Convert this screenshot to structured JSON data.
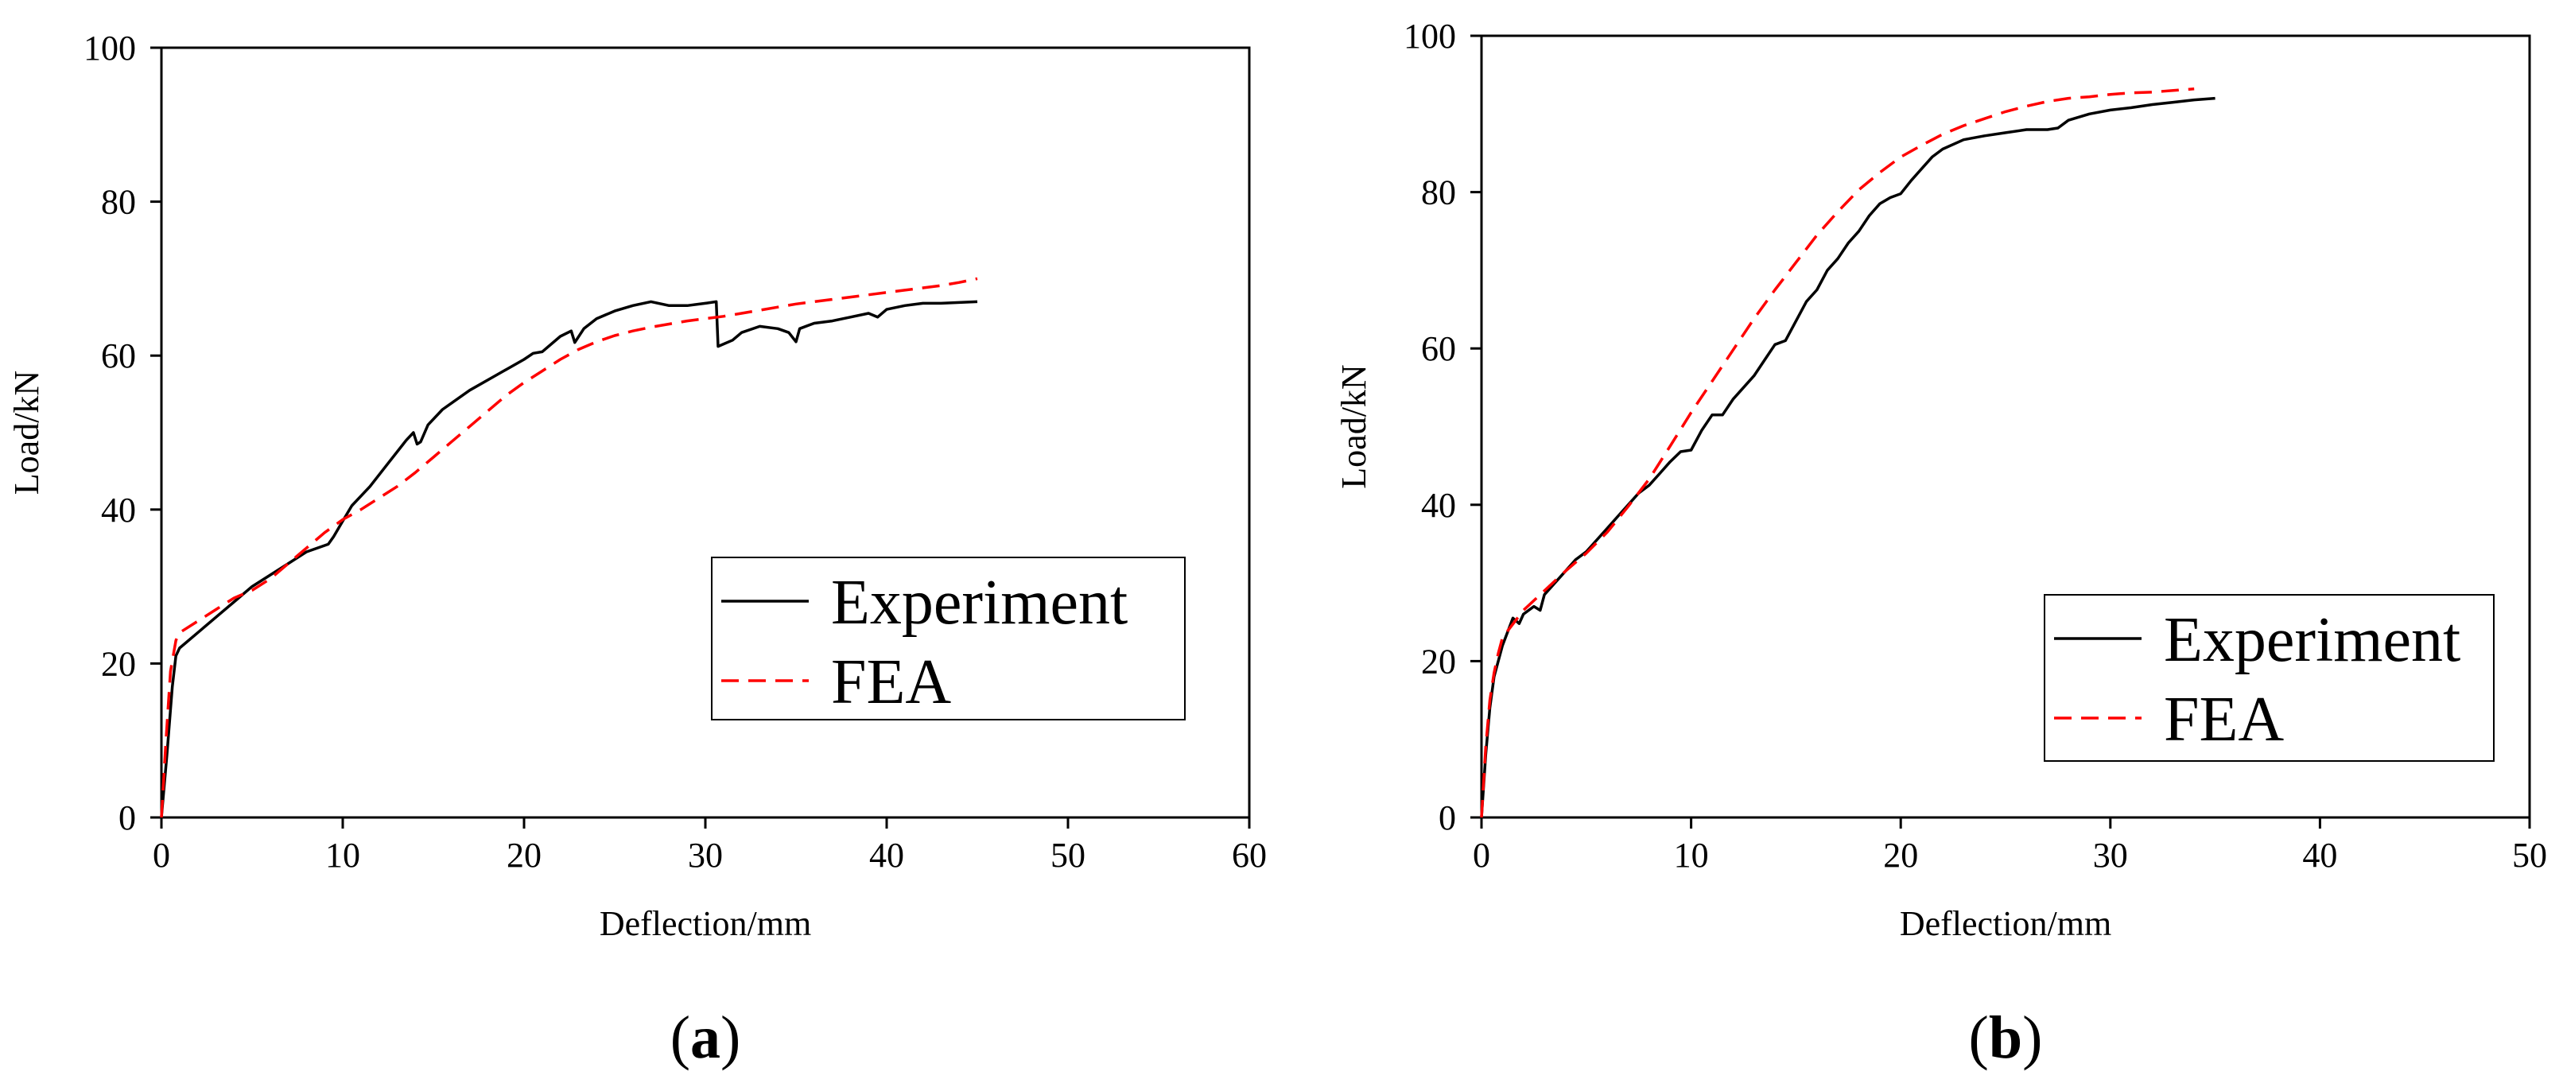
{
  "chart_data": [
    {
      "type": "line",
      "panel_label": "(a)",
      "panel_letter": "a",
      "xlabel": "Deflection/mm",
      "ylabel": "Load/kN",
      "xlim": [
        0,
        60
      ],
      "ylim": [
        0,
        100
      ],
      "xticks": [
        0,
        10,
        20,
        30,
        40,
        50,
        60
      ],
      "yticks": [
        0,
        20,
        40,
        60,
        80,
        100
      ],
      "legend_position": "bottom-right",
      "grid": false,
      "series": [
        {
          "name": "Experiment",
          "color": "#000000",
          "dash": "solid",
          "points": [
            [
              0,
              0
            ],
            [
              0.3,
              8
            ],
            [
              0.6,
              17
            ],
            [
              0.8,
              21
            ],
            [
              1.0,
              22
            ],
            [
              2,
              24
            ],
            [
              3,
              26
            ],
            [
              4,
              28
            ],
            [
              5,
              30
            ],
            [
              6,
              31.5
            ],
            [
              7,
              33
            ],
            [
              8,
              34.5
            ],
            [
              9.2,
              35.5
            ],
            [
              9.5,
              36.5
            ],
            [
              10,
              38.5
            ],
            [
              10.5,
              40.5
            ],
            [
              11.5,
              43
            ],
            [
              12.5,
              46
            ],
            [
              13.5,
              49
            ],
            [
              13.9,
              50
            ],
            [
              14.1,
              48.5
            ],
            [
              14.3,
              48.8
            ],
            [
              14.7,
              51
            ],
            [
              15.5,
              53
            ],
            [
              17,
              55.5
            ],
            [
              18.5,
              57.5
            ],
            [
              20,
              59.5
            ],
            [
              20.5,
              60.3
            ],
            [
              21,
              60.5
            ],
            [
              22,
              62.5
            ],
            [
              22.6,
              63.2
            ],
            [
              22.8,
              61.7
            ],
            [
              23.3,
              63.5
            ],
            [
              24,
              64.8
            ],
            [
              25,
              65.8
            ],
            [
              26,
              66.5
            ],
            [
              27,
              67
            ],
            [
              28,
              66.5
            ],
            [
              29,
              66.5
            ],
            [
              30,
              66.8
            ],
            [
              30.6,
              67
            ],
            [
              30.7,
              61.2
            ],
            [
              31.5,
              62
            ],
            [
              32,
              63
            ],
            [
              33,
              63.8
            ],
            [
              34,
              63.5
            ],
            [
              34.6,
              63
            ],
            [
              35,
              61.8
            ],
            [
              35.2,
              63.5
            ],
            [
              36,
              64.2
            ],
            [
              37,
              64.5
            ],
            [
              38,
              65
            ],
            [
              39,
              65.5
            ],
            [
              39.5,
              65
            ],
            [
              40,
              66
            ],
            [
              41,
              66.5
            ],
            [
              42,
              66.8
            ],
            [
              43,
              66.8
            ],
            [
              44,
              66.9
            ],
            [
              45,
              67
            ]
          ]
        },
        {
          "name": "FEA",
          "color": "#ff0000",
          "dash": "dashed",
          "points": [
            [
              0,
              0
            ],
            [
              0.25,
              10
            ],
            [
              0.5,
              19
            ],
            [
              0.8,
              23
            ],
            [
              1.0,
              24
            ],
            [
              2,
              25.5
            ],
            [
              3,
              27
            ],
            [
              4,
              28.5
            ],
            [
              5,
              29.5
            ],
            [
              6,
              31
            ],
            [
              7,
              33
            ],
            [
              8,
              35
            ],
            [
              9,
              37
            ],
            [
              10,
              38.7
            ],
            [
              11,
              40
            ],
            [
              12,
              41.5
            ],
            [
              13,
              43
            ],
            [
              14,
              44.8
            ],
            [
              15,
              46.8
            ],
            [
              16,
              48.8
            ],
            [
              17,
              50.8
            ],
            [
              18,
              52.8
            ],
            [
              19,
              54.8
            ],
            [
              20,
              56.5
            ],
            [
              21,
              58
            ],
            [
              22,
              59.5
            ],
            [
              23,
              60.8
            ],
            [
              24,
              61.8
            ],
            [
              25,
              62.6
            ],
            [
              26,
              63.2
            ],
            [
              27,
              63.7
            ],
            [
              28,
              64.1
            ],
            [
              29,
              64.5
            ],
            [
              30,
              64.8
            ],
            [
              31,
              65.1
            ],
            [
              32,
              65.5
            ],
            [
              33,
              65.9
            ],
            [
              34,
              66.3
            ],
            [
              35,
              66.7
            ],
            [
              36,
              67
            ],
            [
              37,
              67.3
            ],
            [
              38,
              67.6
            ],
            [
              39,
              67.9
            ],
            [
              40,
              68.2
            ],
            [
              41,
              68.5
            ],
            [
              42,
              68.8
            ],
            [
              43,
              69.1
            ],
            [
              44,
              69.5
            ],
            [
              45,
              70
            ]
          ]
        }
      ]
    },
    {
      "type": "line",
      "panel_label": "(b)",
      "panel_letter": "b",
      "xlabel": "Deflection/mm",
      "ylabel": "Load/kN",
      "xlim": [
        0,
        50
      ],
      "ylim": [
        0,
        100
      ],
      "xticks": [
        0,
        10,
        20,
        30,
        40,
        50
      ],
      "yticks": [
        0,
        20,
        40,
        60,
        80,
        100
      ],
      "legend_position": "bottom-right",
      "grid": false,
      "series": [
        {
          "name": "Experiment",
          "color": "#000000",
          "dash": "solid",
          "points": [
            [
              0,
              0
            ],
            [
              0.2,
              8
            ],
            [
              0.4,
              14
            ],
            [
              0.6,
              18
            ],
            [
              1.0,
              22
            ],
            [
              1.5,
              25.5
            ],
            [
              1.8,
              24.8
            ],
            [
              2,
              26
            ],
            [
              2.5,
              27
            ],
            [
              2.8,
              26.5
            ],
            [
              3,
              28.5
            ],
            [
              3.5,
              30
            ],
            [
              4,
              31.5
            ],
            [
              4.5,
              33
            ],
            [
              5,
              34
            ],
            [
              5.5,
              35.5
            ],
            [
              6,
              37
            ],
            [
              6.5,
              38.5
            ],
            [
              7,
              40
            ],
            [
              7.5,
              41.5
            ],
            [
              8,
              42.5
            ],
            [
              8.5,
              44
            ],
            [
              9,
              45.5
            ],
            [
              9.5,
              46.8
            ],
            [
              10,
              47
            ],
            [
              10.5,
              49.5
            ],
            [
              11,
              51.5
            ],
            [
              11.5,
              51.5
            ],
            [
              12,
              53.5
            ],
            [
              12.5,
              55
            ],
            [
              13,
              56.5
            ],
            [
              13.5,
              58.5
            ],
            [
              14,
              60.5
            ],
            [
              14.5,
              61
            ],
            [
              15,
              63.5
            ],
            [
              15.5,
              66
            ],
            [
              16,
              67.5
            ],
            [
              16.5,
              70
            ],
            [
              17,
              71.5
            ],
            [
              17.5,
              73.5
            ],
            [
              18,
              75
            ],
            [
              18.5,
              77
            ],
            [
              19,
              78.5
            ],
            [
              19.5,
              79.3
            ],
            [
              20,
              79.8
            ],
            [
              20.5,
              81.5
            ],
            [
              21,
              83
            ],
            [
              21.5,
              84.5
            ],
            [
              22,
              85.5
            ],
            [
              23,
              86.7
            ],
            [
              24,
              87.2
            ],
            [
              25,
              87.6
            ],
            [
              26,
              88
            ],
            [
              27,
              88
            ],
            [
              27.5,
              88.2
            ],
            [
              28,
              89.2
            ],
            [
              29,
              90
            ],
            [
              30,
              90.5
            ],
            [
              31,
              90.8
            ],
            [
              32,
              91.2
            ],
            [
              33,
              91.5
            ],
            [
              34,
              91.8
            ],
            [
              35,
              92
            ]
          ]
        },
        {
          "name": "FEA",
          "color": "#ff0000",
          "dash": "dashed",
          "points": [
            [
              0,
              0
            ],
            [
              0.2,
              9
            ],
            [
              0.4,
              15
            ],
            [
              0.6,
              18.5
            ],
            [
              0.8,
              21
            ],
            [
              1,
              23
            ],
            [
              2,
              26.5
            ],
            [
              3,
              29
            ],
            [
              4,
              31.5
            ],
            [
              5,
              33.8
            ],
            [
              6,
              36.5
            ],
            [
              7,
              39.8
            ],
            [
              8,
              43.3
            ],
            [
              9,
              47.5
            ],
            [
              10,
              51.8
            ],
            [
              11,
              55.8
            ],
            [
              12,
              59.8
            ],
            [
              13,
              63.8
            ],
            [
              14,
              67.5
            ],
            [
              15,
              71
            ],
            [
              16,
              74.5
            ],
            [
              17,
              77.5
            ],
            [
              18,
              80.3
            ],
            [
              19,
              82.5
            ],
            [
              20,
              84.5
            ],
            [
              21,
              86
            ],
            [
              22,
              87.4
            ],
            [
              23,
              88.5
            ],
            [
              24,
              89.4
            ],
            [
              25,
              90.3
            ],
            [
              26,
              91
            ],
            [
              27,
              91.6
            ],
            [
              28,
              92
            ],
            [
              29,
              92.2
            ],
            [
              30,
              92.5
            ],
            [
              31,
              92.7
            ],
            [
              32,
              92.8
            ],
            [
              33,
              93
            ],
            [
              34,
              93.2
            ]
          ]
        }
      ]
    }
  ]
}
